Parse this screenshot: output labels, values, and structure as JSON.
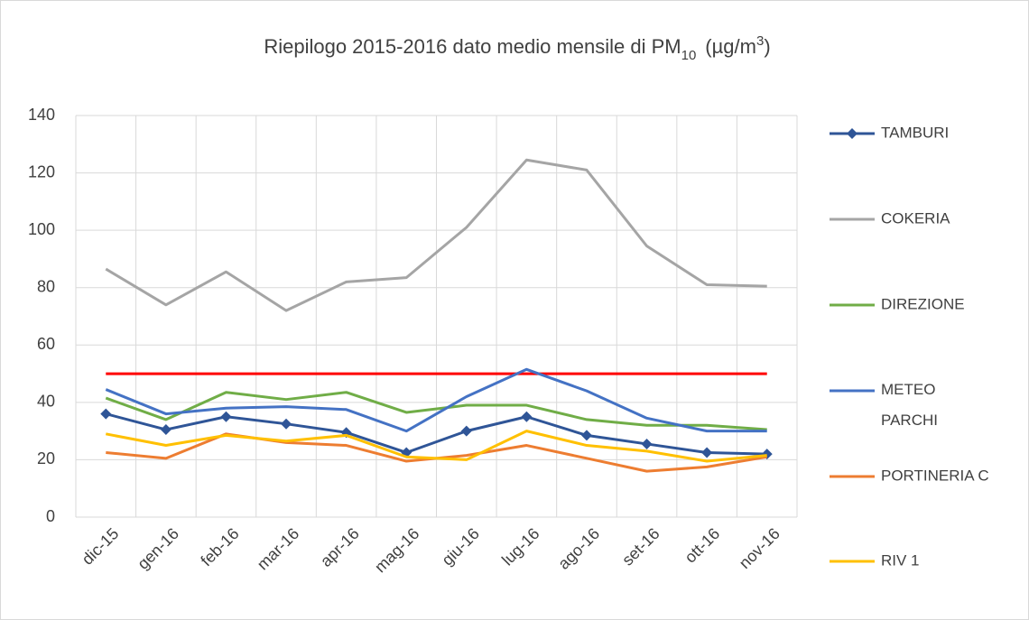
{
  "chart_data": {
    "type": "line",
    "title": {
      "text": "Riepilogo 2015-2016 dato medio mensile di PM",
      "subscript": "10",
      "unit": "(µg/m",
      "superscript": "3",
      "close": ")"
    },
    "categories": [
      "dic-15",
      "gen-16",
      "feb-16",
      "mar-16",
      "apr-16",
      "mag-16",
      "giu-16",
      "lug-16",
      "ago-16",
      "set-16",
      "ott-16",
      "nov-16"
    ],
    "series": [
      {
        "name": "TAMBURI",
        "color": "#2f5597",
        "marker": "diamond",
        "values": [
          36,
          30.5,
          35,
          32.5,
          29.5,
          22.5,
          30,
          35,
          28.5,
          25.5,
          22.5,
          22
        ]
      },
      {
        "name": "COKERIA",
        "color": "#a5a5a5",
        "values": [
          86.5,
          74,
          85.5,
          72,
          82,
          83.5,
          101,
          124.5,
          121,
          94.5,
          81,
          80.5
        ]
      },
      {
        "name": "DIREZIONE",
        "color": "#70ad47",
        "values": [
          41.5,
          34,
          43.5,
          41,
          43.5,
          36.5,
          39,
          39,
          34,
          32,
          32,
          30.5
        ]
      },
      {
        "name": "METEO\nPARCHI",
        "color": "#4472c4",
        "values": [
          44.5,
          36,
          38,
          38.5,
          37.5,
          30,
          42,
          51.5,
          44,
          34.5,
          30,
          30
        ]
      },
      {
        "name": "PORTINERIA C",
        "color": "#ed7d31",
        "values": [
          22.5,
          20.5,
          29,
          26,
          25,
          19.5,
          21.5,
          25,
          20.5,
          16,
          17.5,
          21
        ]
      },
      {
        "name": "RIV 1",
        "color": "#ffc000",
        "values": [
          29,
          25,
          28.5,
          26.5,
          28.5,
          21,
          20,
          30,
          25,
          23,
          19.5,
          21.5
        ]
      }
    ],
    "reference_line": {
      "value": 50,
      "color": "#ff0000"
    },
    "ylim": [
      0,
      140
    ],
    "yticks": [
      0,
      20,
      40,
      60,
      80,
      100,
      120,
      140
    ],
    "grid": true,
    "legend": "right"
  }
}
